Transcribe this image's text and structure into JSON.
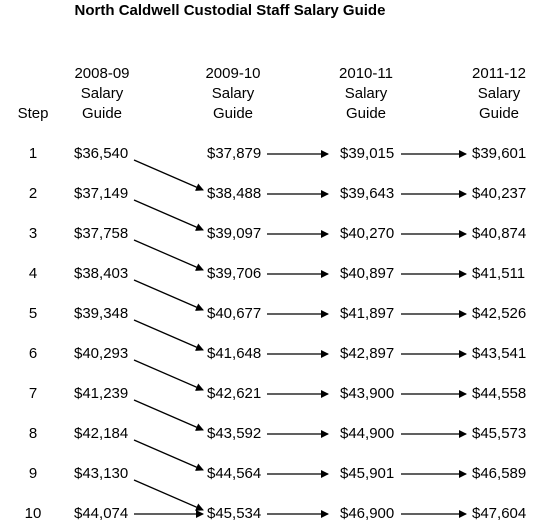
{
  "title": "North Caldwell Custodial Staff Salary Guide",
  "headers": {
    "step": "Step",
    "columns": [
      [
        "2008-09",
        "Salary",
        "Guide"
      ],
      [
        "2009-10",
        "Salary",
        "Guide"
      ],
      [
        "2010-11",
        "Salary",
        "Guide"
      ],
      [
        "2011-12",
        "Salary",
        "Guide"
      ]
    ]
  },
  "rows": [
    {
      "step": "1",
      "values": [
        "$36,540",
        "$37,879",
        "$39,015",
        "$39,601"
      ]
    },
    {
      "step": "2",
      "values": [
        "$37,149",
        "$38,488",
        "$39,643",
        "$40,237"
      ]
    },
    {
      "step": "3",
      "values": [
        "$37,758",
        "$39,097",
        "$40,270",
        "$40,874"
      ]
    },
    {
      "step": "4",
      "values": [
        "$38,403",
        "$39,706",
        "$40,897",
        "$41,511"
      ]
    },
    {
      "step": "5",
      "values": [
        "$39,348",
        "$40,677",
        "$41,897",
        "$42,526"
      ]
    },
    {
      "step": "6",
      "values": [
        "$40,293",
        "$41,648",
        "$42,897",
        "$43,541"
      ]
    },
    {
      "step": "7",
      "values": [
        "$41,239",
        "$42,621",
        "$43,900",
        "$44,558"
      ]
    },
    {
      "step": "8",
      "values": [
        "$42,184",
        "$43,592",
        "$44,900",
        "$45,573"
      ]
    },
    {
      "step": "9",
      "values": [
        "$43,130",
        "$44,564",
        "$45,901",
        "$46,589"
      ]
    },
    {
      "step": "10",
      "values": [
        "$44,074",
        "$45,534",
        "$46,900",
        "$47,604"
      ]
    }
  ]
}
